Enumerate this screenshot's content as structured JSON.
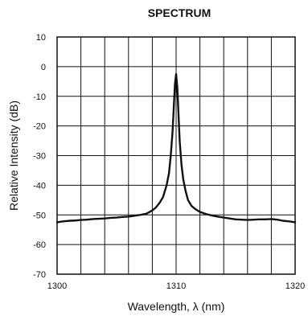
{
  "chart_data": {
    "type": "line",
    "title": "SPECTRUM",
    "xlabel": "Wavelength, λ (nm)",
    "ylabel": "Relative Intensity (dB)",
    "xlim": [
      1300,
      1320
    ],
    "ylim": [
      -70,
      10
    ],
    "x_ticks": [
      1300,
      1302,
      1304,
      1306,
      1308,
      1310,
      1312,
      1314,
      1316,
      1318,
      1320
    ],
    "x_tick_labels": [
      "1300",
      "",
      "",
      "",
      "",
      "1310",
      "",
      "",
      "",
      "",
      "1320"
    ],
    "y_ticks": [
      10,
      0,
      -10,
      -20,
      -30,
      -40,
      -50,
      -60,
      -70
    ],
    "y_tick_labels": [
      "10",
      "0",
      "-10",
      "-20",
      "-30",
      "-40",
      "-50",
      "-60",
      "-70"
    ],
    "grid": true,
    "colors": {
      "line": "#111111",
      "grid": "#111111"
    },
    "series": [
      {
        "x": [
          1300,
          1300.5,
          1301,
          1301.5,
          1302,
          1302.5,
          1303,
          1303.5,
          1304,
          1304.5,
          1305,
          1305.5,
          1306,
          1306.5,
          1307,
          1307.5,
          1308,
          1308.3,
          1308.6,
          1308.9,
          1309.2,
          1309.4,
          1309.55,
          1309.7,
          1309.8,
          1309.9,
          1310.0,
          1310.1,
          1310.2,
          1310.3,
          1310.45,
          1310.6,
          1310.8,
          1311.0,
          1311.3,
          1311.6,
          1312,
          1312.5,
          1313,
          1313.5,
          1314,
          1314.5,
          1315,
          1315.5,
          1316,
          1316.5,
          1317,
          1317.5,
          1318,
          1318.5,
          1319,
          1319.5,
          1320
        ],
        "values": [
          -52.5,
          -52.2,
          -52.0,
          -51.9,
          -51.7,
          -51.6,
          -51.4,
          -51.3,
          -51.2,
          -51.0,
          -50.9,
          -50.7,
          -50.6,
          -50.3,
          -50.0,
          -49.6,
          -48.5,
          -47.5,
          -46.0,
          -44.0,
          -40.0,
          -36.0,
          -30.0,
          -22.0,
          -14.0,
          -6.0,
          -2.5,
          -7.0,
          -16.0,
          -25.0,
          -33.0,
          -38.0,
          -42.0,
          -45.0,
          -47.0,
          -48.0,
          -49.0,
          -49.7,
          -50.2,
          -50.6,
          -50.9,
          -51.2,
          -51.5,
          -51.6,
          -51.7,
          -51.6,
          -51.5,
          -51.5,
          -51.4,
          -51.6,
          -52.0,
          -52.2,
          -52.5
        ]
      }
    ]
  }
}
